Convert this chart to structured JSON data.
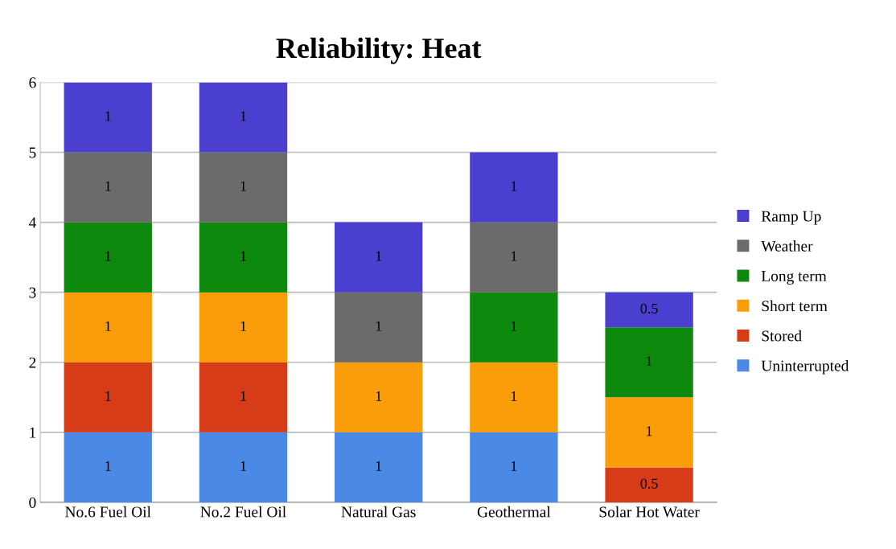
{
  "chart_data": {
    "type": "bar",
    "title": "Reliability: Heat",
    "stacked": true,
    "data_labels": true,
    "grid": "y",
    "legend": "right",
    "categories": [
      "No.6 Fuel Oil",
      "No.2 Fuel Oil",
      "Natural Gas",
      "Geothermal",
      "Solar Hot Water"
    ],
    "ylim": [
      0,
      6
    ],
    "yticks": [
      0,
      1,
      2,
      3,
      4,
      5,
      6
    ],
    "series": [
      {
        "name": "Uninterrupted",
        "color": "#4a8ae6",
        "values": [
          1,
          1,
          1,
          1,
          null
        ]
      },
      {
        "name": "Stored",
        "color": "#d63c17",
        "values": [
          1,
          1,
          null,
          null,
          0.5
        ]
      },
      {
        "name": "Short term",
        "color": "#f99d0b",
        "values": [
          1,
          1,
          1,
          1,
          1
        ]
      },
      {
        "name": "Long term",
        "color": "#0d8a0d",
        "values": [
          1,
          1,
          null,
          1,
          1
        ]
      },
      {
        "name": "Weather",
        "color": "#6b6b6b",
        "values": [
          1,
          1,
          1,
          1,
          null
        ]
      },
      {
        "name": "Ramp Up",
        "color": "#4a3fce",
        "values": [
          1,
          1,
          1,
          1,
          0.5
        ]
      }
    ]
  }
}
